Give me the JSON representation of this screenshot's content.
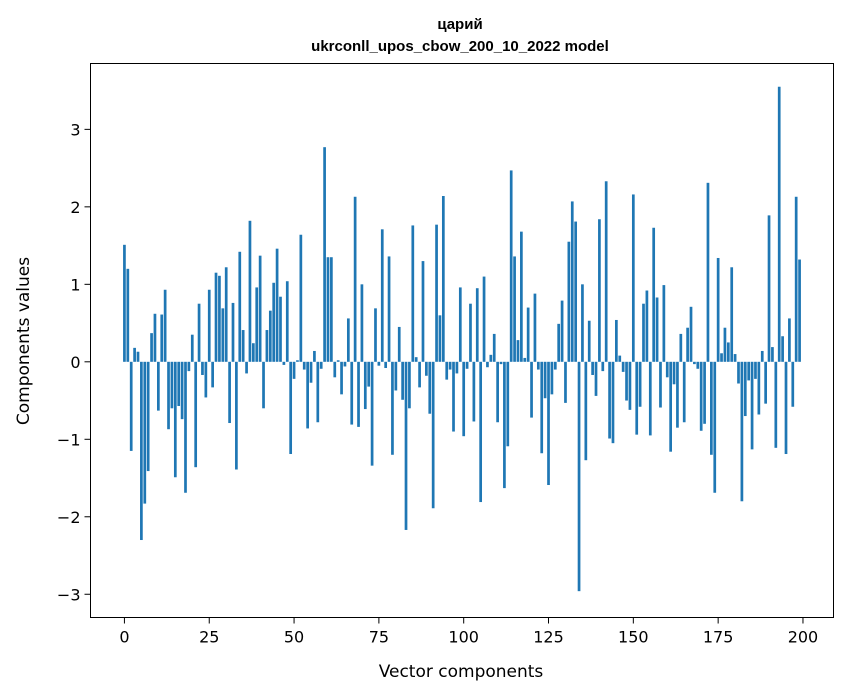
{
  "chart_data": {
    "type": "bar",
    "title": "царий",
    "subtitle": "ukrconll_upos_cbow_200_10_2022 model",
    "xlabel": "Vector components",
    "ylabel": "Components values",
    "xlim": [
      -10,
      209
    ],
    "ylim": [
      -3.3,
      3.85
    ],
    "xticks": [
      0,
      25,
      50,
      75,
      100,
      125,
      150,
      175,
      200
    ],
    "yticks": [
      -3,
      -2,
      -1,
      0,
      1,
      2,
      3
    ],
    "ytick_labels": [
      "−3",
      "−2",
      "−1",
      "0",
      "1",
      "2",
      "3"
    ],
    "grid": false,
    "color": "#1f77b4",
    "values": [
      1.51,
      1.2,
      -1.15,
      0.18,
      0.13,
      -2.3,
      -1.83,
      -1.41,
      0.37,
      0.62,
      -0.63,
      0.61,
      0.93,
      -0.87,
      -0.6,
      -1.49,
      -0.57,
      -0.74,
      -1.69,
      -0.12,
      0.35,
      -1.36,
      0.75,
      -0.17,
      -0.46,
      0.93,
      -0.33,
      1.15,
      1.11,
      0.69,
      1.22,
      -0.79,
      0.76,
      -1.39,
      1.42,
      0.41,
      -0.15,
      1.82,
      0.24,
      0.96,
      1.37,
      -0.6,
      0.41,
      0.66,
      1.02,
      1.46,
      0.84,
      -0.04,
      1.04,
      -1.19,
      -0.22,
      0.02,
      1.64,
      -0.1,
      -0.86,
      -0.27,
      0.14,
      -0.78,
      -0.09,
      2.77,
      1.35,
      1.35,
      -0.2,
      0.02,
      -0.42,
      -0.06,
      0.56,
      -0.81,
      2.13,
      -0.84,
      1.0,
      -0.61,
      -0.32,
      -1.34,
      0.69,
      -0.05,
      1.71,
      -0.08,
      1.36,
      -1.2,
      -0.37,
      0.45,
      -0.49,
      -2.17,
      -0.6,
      1.76,
      0.06,
      -0.33,
      1.3,
      -0.18,
      -0.67,
      -1.89,
      1.77,
      0.6,
      2.14,
      -0.23,
      -0.1,
      -0.9,
      -0.15,
      0.96,
      -0.96,
      -0.09,
      0.75,
      -0.77,
      0.95,
      -1.81,
      1.1,
      -0.07,
      0.09,
      0.36,
      -0.78,
      -0.03,
      -1.63,
      -1.09,
      2.47,
      1.36,
      0.28,
      1.68,
      0.05,
      0.7,
      -0.72,
      0.88,
      -0.1,
      -1.18,
      -0.47,
      -1.59,
      -0.42,
      -0.1,
      0.49,
      0.79,
      -0.53,
      1.55,
      2.07,
      1.81,
      -2.96,
      1.0,
      -1.27,
      0.53,
      -0.17,
      -0.44,
      1.84,
      -0.12,
      2.33,
      -0.99,
      -1.05,
      0.54,
      0.08,
      -0.13,
      -0.5,
      -0.62,
      2.16,
      -0.94,
      -0.58,
      0.75,
      0.92,
      -0.95,
      1.73,
      0.83,
      -0.59,
      0.99,
      -0.2,
      -1.16,
      -0.29,
      -0.85,
      0.36,
      -0.78,
      0.44,
      0.71,
      -0.03,
      -0.09,
      -0.89,
      -0.8,
      2.31,
      -1.2,
      -1.69,
      1.34,
      0.11,
      0.44,
      0.25,
      1.22,
      0.1,
      -0.28,
      -1.8,
      -0.7,
      -0.24,
      -1.13,
      -0.22,
      -0.68,
      0.14,
      -0.54,
      1.89,
      0.19,
      -1.11,
      3.55,
      0.33,
      -1.19,
      0.56,
      -0.58,
      2.13,
      1.32
    ]
  }
}
